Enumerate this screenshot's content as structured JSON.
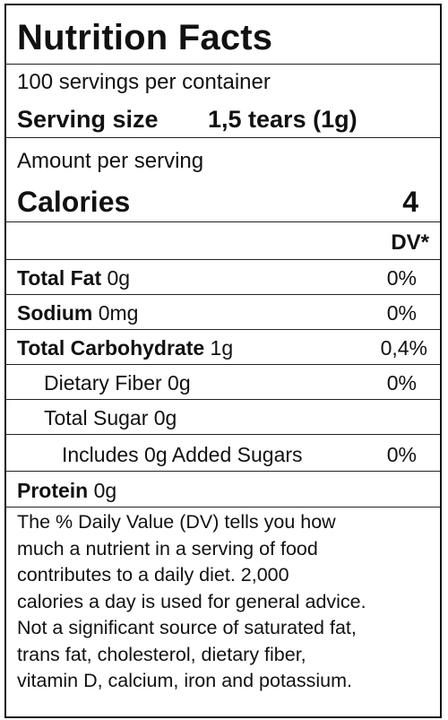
{
  "title": "Nutrition Facts",
  "servings_per_container": "100 servings per container",
  "serving_size": {
    "label": "Serving size",
    "value": "1,5 tears (1g)"
  },
  "amount_per_serving": "Amount per serving",
  "calories": {
    "label": "Calories",
    "value": "4"
  },
  "dv_header": "DV*",
  "nutrients": [
    {
      "name": "Total Fat",
      "amount": " 0g",
      "dv": "0%"
    },
    {
      "name": "Sodium",
      "amount": " 0mg",
      "dv": "0%"
    },
    {
      "name": "Total Carbohydrate",
      "amount": " 1g",
      "dv": "0,4%"
    },
    {
      "name": "Dietary Fiber 0g",
      "dv": "0%"
    },
    {
      "name": "Total Sugar 0g"
    },
    {
      "name": "Includes 0g Added Sugars",
      "dv": "0%"
    },
    {
      "name": "Protein",
      "amount": " 0g"
    }
  ],
  "footnote_lines": [
    "The % Daily Value (DV) tells you how",
    "much a nutrient in a serving of food",
    "contributes to a daily diet. 2,000",
    "calories a day is used for general advice.",
    "Not a significant source of saturated fat,",
    "trans fat, cholesterol, dietary fiber,",
    "vitamin D, calcium, iron and potassium."
  ]
}
